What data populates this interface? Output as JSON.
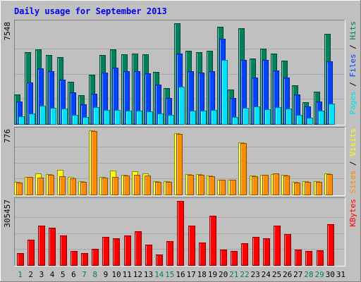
{
  "chart_data": {
    "type": "bar",
    "title": "Daily usage for September 2013",
    "days": [
      1,
      2,
      3,
      4,
      5,
      6,
      7,
      8,
      9,
      10,
      11,
      12,
      13,
      14,
      15,
      16,
      17,
      18,
      19,
      20,
      21,
      22,
      23,
      24,
      25,
      26,
      27,
      28,
      29,
      30,
      31
    ],
    "weekend_days": [
      1,
      7,
      8,
      14,
      15,
      21,
      22,
      28,
      29
    ],
    "panels": [
      {
        "id": "hits_files_pages",
        "y_max_label": "7548",
        "y_max": 7548,
        "right_label": [
          {
            "text": "Pages",
            "color": "#00e0e0"
          },
          {
            "text": " / ",
            "color": "#000000"
          },
          {
            "text": "Files",
            "color": "#0040ff"
          },
          {
            "text": " / ",
            "color": "#000000"
          },
          {
            "text": "Hits",
            "color": "#00805c"
          }
        ],
        "series": [
          {
            "name": "Hits",
            "color": "#00805c",
            "values": [
              2200,
              5400,
              5600,
              5150,
              5000,
              3150,
              2150,
              3700,
              5150,
              5600,
              5250,
              5300,
              5200,
              3900,
              2700,
              7548,
              5500,
              5400,
              5500,
              7300,
              2600,
              7200,
              4900,
              5650,
              5300,
              4750,
              2900,
              1650,
              2450,
              6750,
              0
            ]
          },
          {
            "name": "Files",
            "color": "#0044ff",
            "values": [
              1700,
              3100,
              4150,
              3950,
              3300,
              2400,
              1500,
              2250,
              3850,
              4200,
              3950,
              3950,
              3800,
              2950,
              1950,
              5300,
              3950,
              3850,
              3950,
              6400,
              1950,
              4800,
              3500,
              4800,
              4000,
              3500,
              2200,
              1300,
              1700,
              4700,
              0
            ]
          },
          {
            "name": "Pages",
            "color": "#00e0ff",
            "values": [
              600,
              800,
              1350,
              1200,
              1150,
              700,
              550,
              1250,
              1050,
              1050,
              1000,
              1000,
              950,
              800,
              700,
              2800,
              1000,
              1000,
              1050,
              4800,
              550,
              1200,
              1300,
              1100,
              1250,
              1150,
              700,
              500,
              1000,
              1550,
              0
            ]
          }
        ]
      },
      {
        "id": "visits_sites",
        "y_max_label": "776",
        "y_max": 776,
        "right_label": [
          {
            "text": "Sites",
            "color": "#ff8c00"
          },
          {
            "text": " / ",
            "color": "#000000"
          },
          {
            "text": "Visits",
            "color": "#ffff00"
          }
        ],
        "series": [
          {
            "name": "Visits",
            "color": "#ffff00",
            "values": [
              150,
              215,
              260,
              250,
              300,
              210,
              160,
              776,
              210,
              290,
              240,
              280,
              260,
              165,
              160,
              740,
              250,
              250,
              230,
              180,
              180,
              630,
              230,
              240,
              250,
              240,
              150,
              160,
              160,
              260,
              0
            ]
          },
          {
            "name": "Sites",
            "color": "#ff8c00",
            "values": [
              145,
              210,
              205,
              240,
              225,
              195,
              150,
              770,
              205,
              210,
              230,
              235,
              230,
              155,
              155,
              735,
              240,
              240,
              220,
              175,
              175,
              625,
              225,
              235,
              255,
              230,
              145,
              155,
              155,
              250,
              0
            ]
          }
        ]
      },
      {
        "id": "kbytes",
        "y_max_label": "305457",
        "y_max": 305457,
        "right_label": [
          {
            "text": "KBytes",
            "color": "#ff0000"
          }
        ],
        "series": [
          {
            "name": "KBytes",
            "color": "#ff0000",
            "values": [
              57000,
              120000,
              187000,
              177000,
              140000,
              67000,
              57000,
              77000,
              135000,
              127000,
              140000,
              160000,
              97000,
              50000,
              113000,
              305457,
              187000,
              107000,
              235000,
              73000,
              67000,
              103000,
              133000,
              128000,
              188000,
              147000,
              73000,
              68000,
              70000,
              195000,
              0
            ]
          }
        ]
      }
    ]
  }
}
